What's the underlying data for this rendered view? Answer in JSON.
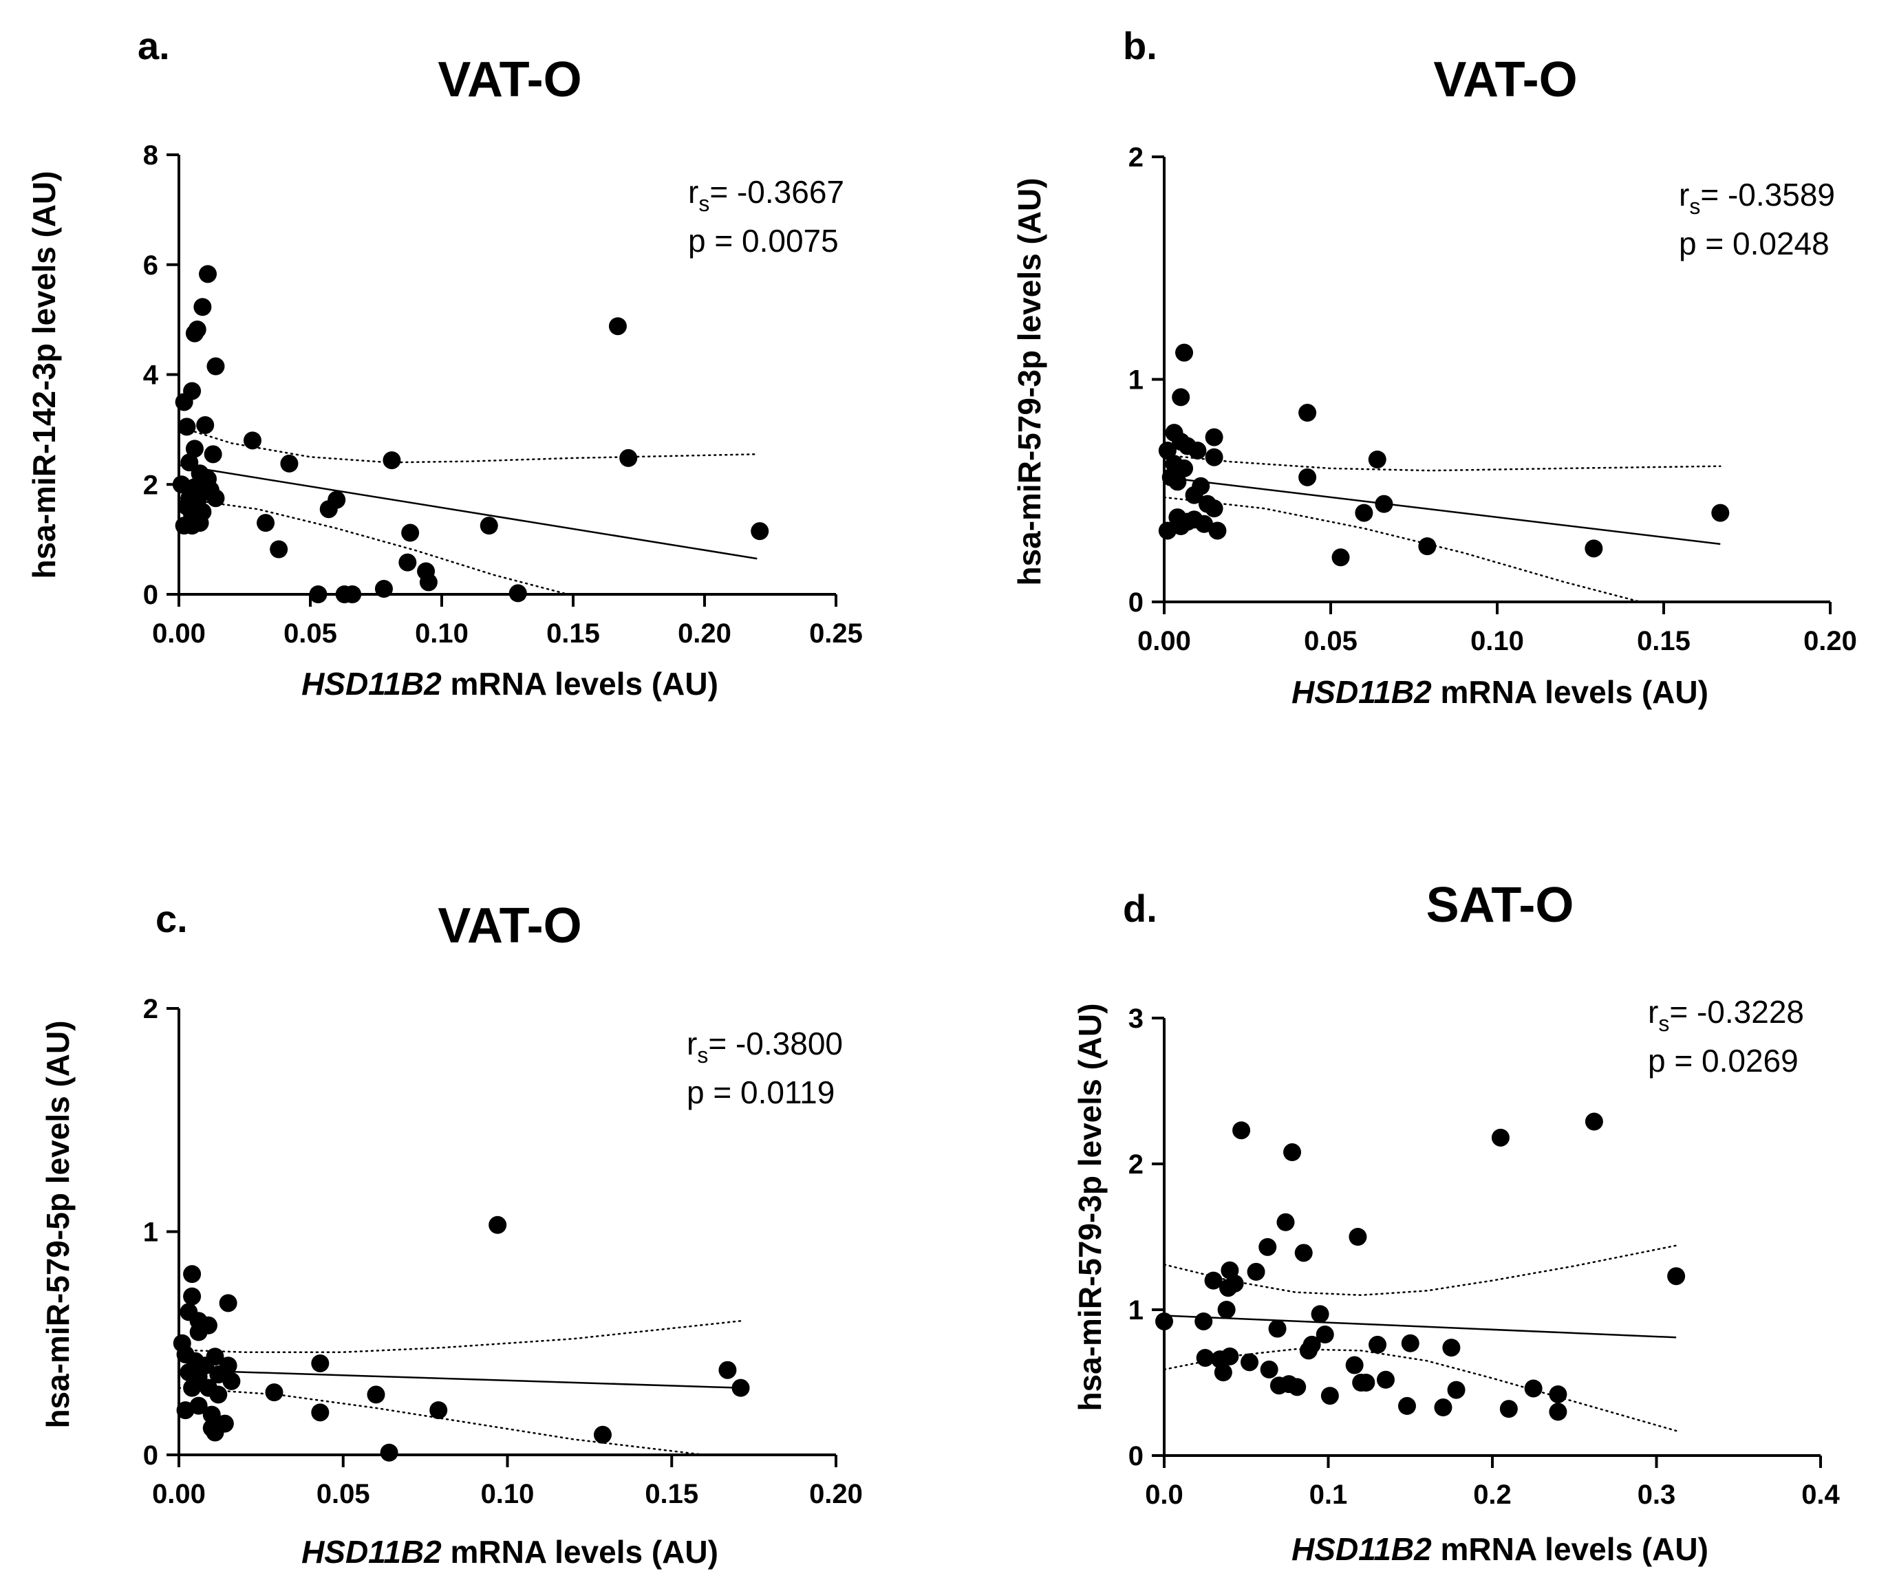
{
  "chart_data": [
    {
      "type": "scatter",
      "panel_label": "a.",
      "title": "VAT-O",
      "xlabel_italic": "HSD11B2",
      "xlabel_rest": " mRNA levels (AU)",
      "ylabel": "hsa-miR-142-3p levels (AU)",
      "xlim": [
        0,
        0.25
      ],
      "ylim": [
        0,
        8
      ],
      "x_ticks": [
        0,
        0.05,
        0.1,
        0.15,
        0.2,
        0.25
      ],
      "x_tick_labels": [
        "0.00",
        "0.05",
        "0.10",
        "0.15",
        "0.20",
        "0.25"
      ],
      "y_ticks": [
        0,
        2,
        4,
        6,
        8
      ],
      "y_tick_labels": [
        "0",
        "2",
        "4",
        "6",
        "8"
      ],
      "stats": {
        "rs_label": "r",
        "rs_sub": "s",
        "rs_value": "= -0.3667",
        "p_text": "p = 0.0075"
      },
      "fit": {
        "x": [
          0,
          0.22
        ],
        "y": [
          2.35,
          0.65
        ]
      },
      "ci_upper": {
        "x": [
          0,
          0.02,
          0.05,
          0.08,
          0.11,
          0.15,
          0.22
        ],
        "y": [
          3.05,
          2.75,
          2.5,
          2.4,
          2.42,
          2.48,
          2.55
        ]
      },
      "ci_lower": {
        "x": [
          0,
          0.03,
          0.06,
          0.09,
          0.12,
          0.148
        ],
        "y": [
          1.75,
          1.55,
          1.2,
          0.8,
          0.35,
          0.0
        ]
      },
      "points": [
        {
          "x": 0.011,
          "y": 5.83
        },
        {
          "x": 0.009,
          "y": 5.23
        },
        {
          "x": 0.007,
          "y": 4.82
        },
        {
          "x": 0.006,
          "y": 4.75
        },
        {
          "x": 0.014,
          "y": 4.15
        },
        {
          "x": 0.005,
          "y": 3.7
        },
        {
          "x": 0.002,
          "y": 3.5
        },
        {
          "x": 0.003,
          "y": 3.05
        },
        {
          "x": 0.01,
          "y": 3.08
        },
        {
          "x": 0.006,
          "y": 2.65
        },
        {
          "x": 0.013,
          "y": 2.55
        },
        {
          "x": 0.004,
          "y": 2.4
        },
        {
          "x": 0.008,
          "y": 2.2
        },
        {
          "x": 0.011,
          "y": 2.1
        },
        {
          "x": 0.001,
          "y": 2.0
        },
        {
          "x": 0.006,
          "y": 1.95
        },
        {
          "x": 0.012,
          "y": 1.9
        },
        {
          "x": 0.009,
          "y": 1.85
        },
        {
          "x": 0.004,
          "y": 1.75
        },
        {
          "x": 0.014,
          "y": 1.75
        },
        {
          "x": 0.007,
          "y": 1.7
        },
        {
          "x": 0.003,
          "y": 1.6
        },
        {
          "x": 0.009,
          "y": 1.5
        },
        {
          "x": 0.005,
          "y": 1.45
        },
        {
          "x": 0.002,
          "y": 1.25
        },
        {
          "x": 0.005,
          "y": 1.25
        },
        {
          "x": 0.008,
          "y": 1.3
        },
        {
          "x": 0.028,
          "y": 2.8
        },
        {
          "x": 0.042,
          "y": 2.38
        },
        {
          "x": 0.081,
          "y": 2.44
        },
        {
          "x": 0.033,
          "y": 1.3
        },
        {
          "x": 0.038,
          "y": 0.82
        },
        {
          "x": 0.06,
          "y": 1.72
        },
        {
          "x": 0.057,
          "y": 1.55
        },
        {
          "x": 0.088,
          "y": 1.12
        },
        {
          "x": 0.087,
          "y": 0.58
        },
        {
          "x": 0.094,
          "y": 0.42
        },
        {
          "x": 0.095,
          "y": 0.22
        },
        {
          "x": 0.078,
          "y": 0.1
        },
        {
          "x": 0.118,
          "y": 1.25
        },
        {
          "x": 0.053,
          "y": 0.0
        },
        {
          "x": 0.063,
          "y": 0.0
        },
        {
          "x": 0.066,
          "y": 0.0
        },
        {
          "x": 0.129,
          "y": 0.02
        },
        {
          "x": 0.167,
          "y": 4.88
        },
        {
          "x": 0.171,
          "y": 2.48
        },
        {
          "x": 0.221,
          "y": 1.15
        }
      ]
    },
    {
      "type": "scatter",
      "panel_label": "b.",
      "title": "VAT-O",
      "xlabel_italic": "HSD11B2",
      "xlabel_rest": " mRNA levels (AU)",
      "ylabel": "hsa-miR-579-3p levels (AU)",
      "xlim": [
        0,
        0.2
      ],
      "ylim": [
        0,
        2
      ],
      "x_ticks": [
        0,
        0.05,
        0.1,
        0.15,
        0.2
      ],
      "x_tick_labels": [
        "0.00",
        "0.05",
        "0.10",
        "0.15",
        "0.20"
      ],
      "y_ticks": [
        0,
        1,
        2
      ],
      "y_tick_labels": [
        "0",
        "1",
        "2"
      ],
      "stats": {
        "rs_label": "r",
        "rs_sub": "s",
        "rs_value": "= -0.3589",
        "p_text": "p = 0.0248"
      },
      "fit": {
        "x": [
          0,
          0.167
        ],
        "y": [
          0.56,
          0.26
        ]
      },
      "ci_upper": {
        "x": [
          0,
          0.02,
          0.05,
          0.08,
          0.12,
          0.167
        ],
        "y": [
          0.66,
          0.63,
          0.6,
          0.59,
          0.6,
          0.61
        ]
      },
      "ci_lower": {
        "x": [
          0,
          0.03,
          0.06,
          0.09,
          0.12,
          0.143
        ],
        "y": [
          0.47,
          0.42,
          0.33,
          0.22,
          0.09,
          0.0
        ]
      },
      "points": [
        {
          "x": 0.006,
          "y": 1.12
        },
        {
          "x": 0.005,
          "y": 0.92
        },
        {
          "x": 0.003,
          "y": 0.76
        },
        {
          "x": 0.005,
          "y": 0.72
        },
        {
          "x": 0.015,
          "y": 0.74
        },
        {
          "x": 0.001,
          "y": 0.68
        },
        {
          "x": 0.007,
          "y": 0.7
        },
        {
          "x": 0.01,
          "y": 0.68
        },
        {
          "x": 0.003,
          "y": 0.62
        },
        {
          "x": 0.006,
          "y": 0.6
        },
        {
          "x": 0.015,
          "y": 0.65
        },
        {
          "x": 0.002,
          "y": 0.56
        },
        {
          "x": 0.004,
          "y": 0.54
        },
        {
          "x": 0.011,
          "y": 0.52
        },
        {
          "x": 0.009,
          "y": 0.48
        },
        {
          "x": 0.013,
          "y": 0.44
        },
        {
          "x": 0.015,
          "y": 0.42
        },
        {
          "x": 0.004,
          "y": 0.38
        },
        {
          "x": 0.007,
          "y": 0.36
        },
        {
          "x": 0.009,
          "y": 0.37
        },
        {
          "x": 0.012,
          "y": 0.35
        },
        {
          "x": 0.001,
          "y": 0.32
        },
        {
          "x": 0.005,
          "y": 0.34
        },
        {
          "x": 0.016,
          "y": 0.32
        },
        {
          "x": 0.043,
          "y": 0.85
        },
        {
          "x": 0.043,
          "y": 0.56
        },
        {
          "x": 0.064,
          "y": 0.64
        },
        {
          "x": 0.066,
          "y": 0.44
        },
        {
          "x": 0.06,
          "y": 0.4
        },
        {
          "x": 0.053,
          "y": 0.2
        },
        {
          "x": 0.079,
          "y": 0.25
        },
        {
          "x": 0.129,
          "y": 0.24
        },
        {
          "x": 0.167,
          "y": 0.4
        }
      ]
    },
    {
      "type": "scatter",
      "panel_label": "c.",
      "title": "VAT-O",
      "xlabel_italic": "HSD11B2",
      "xlabel_rest": " mRNA levels (AU)",
      "ylabel": "hsa-miR-579-5p levels (AU)",
      "xlim": [
        0,
        0.2
      ],
      "ylim": [
        0,
        2
      ],
      "x_ticks": [
        0,
        0.05,
        0.1,
        0.15,
        0.2
      ],
      "x_tick_labels": [
        "0.00",
        "0.05",
        "0.10",
        "0.15",
        "0.20"
      ],
      "y_ticks": [
        0,
        1,
        2
      ],
      "y_tick_labels": [
        "0",
        "1",
        "2"
      ],
      "stats": {
        "rs_label": "r",
        "rs_sub": "s",
        "rs_value": "= -0.3800",
        "p_text": "p = 0.0119"
      },
      "fit": {
        "x": [
          0,
          0.171
        ],
        "y": [
          0.38,
          0.3
        ]
      },
      "ci_upper": {
        "x": [
          0,
          0.02,
          0.05,
          0.08,
          0.12,
          0.171
        ],
        "y": [
          0.47,
          0.46,
          0.46,
          0.48,
          0.52,
          0.6
        ]
      },
      "ci_lower": {
        "x": [
          0,
          0.03,
          0.06,
          0.09,
          0.12,
          0.16
        ],
        "y": [
          0.3,
          0.27,
          0.21,
          0.14,
          0.07,
          0.0
        ]
      },
      "points": [
        {
          "x": 0.004,
          "y": 0.81
        },
        {
          "x": 0.004,
          "y": 0.71
        },
        {
          "x": 0.015,
          "y": 0.68
        },
        {
          "x": 0.003,
          "y": 0.64
        },
        {
          "x": 0.006,
          "y": 0.6
        },
        {
          "x": 0.009,
          "y": 0.58
        },
        {
          "x": 0.006,
          "y": 0.55
        },
        {
          "x": 0.001,
          "y": 0.5
        },
        {
          "x": 0.002,
          "y": 0.45
        },
        {
          "x": 0.011,
          "y": 0.44
        },
        {
          "x": 0.005,
          "y": 0.42
        },
        {
          "x": 0.008,
          "y": 0.4
        },
        {
          "x": 0.015,
          "y": 0.4
        },
        {
          "x": 0.003,
          "y": 0.37
        },
        {
          "x": 0.006,
          "y": 0.35
        },
        {
          "x": 0.012,
          "y": 0.36
        },
        {
          "x": 0.016,
          "y": 0.33
        },
        {
          "x": 0.004,
          "y": 0.3
        },
        {
          "x": 0.009,
          "y": 0.3
        },
        {
          "x": 0.012,
          "y": 0.27
        },
        {
          "x": 0.006,
          "y": 0.22
        },
        {
          "x": 0.002,
          "y": 0.2
        },
        {
          "x": 0.01,
          "y": 0.18
        },
        {
          "x": 0.014,
          "y": 0.14
        },
        {
          "x": 0.01,
          "y": 0.12
        },
        {
          "x": 0.011,
          "y": 0.1
        },
        {
          "x": 0.029,
          "y": 0.28
        },
        {
          "x": 0.043,
          "y": 0.41
        },
        {
          "x": 0.043,
          "y": 0.19
        },
        {
          "x": 0.06,
          "y": 0.27
        },
        {
          "x": 0.064,
          "y": 0.01
        },
        {
          "x": 0.079,
          "y": 0.2
        },
        {
          "x": 0.097,
          "y": 1.03
        },
        {
          "x": 0.129,
          "y": 0.09
        },
        {
          "x": 0.167,
          "y": 0.38
        },
        {
          "x": 0.171,
          "y": 0.3
        }
      ]
    },
    {
      "type": "scatter",
      "panel_label": "d.",
      "title": "SAT-O",
      "xlabel_italic": "HSD11B2",
      "xlabel_rest": " mRNA levels (AU)",
      "ylabel": "hsa-miR-579-3p levels (AU)",
      "xlim": [
        0,
        0.4
      ],
      "ylim": [
        0,
        3
      ],
      "x_ticks": [
        0,
        0.1,
        0.2,
        0.3,
        0.4
      ],
      "x_tick_labels": [
        "0.0",
        "0.1",
        "0.2",
        "0.3",
        "0.4"
      ],
      "y_ticks": [
        0,
        1,
        2,
        3
      ],
      "y_tick_labels": [
        "0",
        "1",
        "2",
        "3"
      ],
      "stats": {
        "rs_label": "r",
        "rs_sub": "s",
        "rs_value": "= -0.3228",
        "p_text": "p = 0.0269"
      },
      "fit": {
        "x": [
          0,
          0.312
        ],
        "y": [
          0.96,
          0.81
        ]
      },
      "ci_upper": {
        "x": [
          0,
          0.04,
          0.08,
          0.12,
          0.16,
          0.2,
          0.25,
          0.312
        ],
        "y": [
          1.31,
          1.2,
          1.12,
          1.1,
          1.13,
          1.2,
          1.3,
          1.44
        ]
      },
      "ci_lower": {
        "x": [
          0,
          0.04,
          0.08,
          0.12,
          0.16,
          0.2,
          0.25,
          0.312
        ],
        "y": [
          0.59,
          0.68,
          0.73,
          0.72,
          0.65,
          0.53,
          0.37,
          0.17
        ]
      },
      "points": [
        {
          "x": 0.0,
          "y": 0.92
        },
        {
          "x": 0.024,
          "y": 0.92
        },
        {
          "x": 0.025,
          "y": 0.67
        },
        {
          "x": 0.03,
          "y": 1.2
        },
        {
          "x": 0.034,
          "y": 0.66
        },
        {
          "x": 0.036,
          "y": 0.57
        },
        {
          "x": 0.038,
          "y": 1.0
        },
        {
          "x": 0.039,
          "y": 1.15
        },
        {
          "x": 0.04,
          "y": 1.27
        },
        {
          "x": 0.04,
          "y": 0.68
        },
        {
          "x": 0.043,
          "y": 1.18
        },
        {
          "x": 0.047,
          "y": 2.23
        },
        {
          "x": 0.052,
          "y": 0.64
        },
        {
          "x": 0.056,
          "y": 1.26
        },
        {
          "x": 0.063,
          "y": 1.43
        },
        {
          "x": 0.064,
          "y": 0.59
        },
        {
          "x": 0.069,
          "y": 0.87
        },
        {
          "x": 0.07,
          "y": 0.48
        },
        {
          "x": 0.074,
          "y": 1.6
        },
        {
          "x": 0.076,
          "y": 0.49
        },
        {
          "x": 0.078,
          "y": 2.08
        },
        {
          "x": 0.081,
          "y": 0.47
        },
        {
          "x": 0.085,
          "y": 1.39
        },
        {
          "x": 0.088,
          "y": 0.72
        },
        {
          "x": 0.09,
          "y": 0.76
        },
        {
          "x": 0.095,
          "y": 0.97
        },
        {
          "x": 0.098,
          "y": 0.83
        },
        {
          "x": 0.101,
          "y": 0.41
        },
        {
          "x": 0.116,
          "y": 0.62
        },
        {
          "x": 0.118,
          "y": 1.5
        },
        {
          "x": 0.12,
          "y": 0.5
        },
        {
          "x": 0.123,
          "y": 0.5
        },
        {
          "x": 0.13,
          "y": 0.76
        },
        {
          "x": 0.135,
          "y": 0.52
        },
        {
          "x": 0.148,
          "y": 0.34
        },
        {
          "x": 0.15,
          "y": 0.77
        },
        {
          "x": 0.17,
          "y": 0.33
        },
        {
          "x": 0.175,
          "y": 0.74
        },
        {
          "x": 0.178,
          "y": 0.45
        },
        {
          "x": 0.205,
          "y": 2.18
        },
        {
          "x": 0.21,
          "y": 0.32
        },
        {
          "x": 0.225,
          "y": 0.46
        },
        {
          "x": 0.24,
          "y": 0.42
        },
        {
          "x": 0.24,
          "y": 0.3
        },
        {
          "x": 0.262,
          "y": 2.29
        },
        {
          "x": 0.312,
          "y": 1.23
        }
      ]
    }
  ]
}
